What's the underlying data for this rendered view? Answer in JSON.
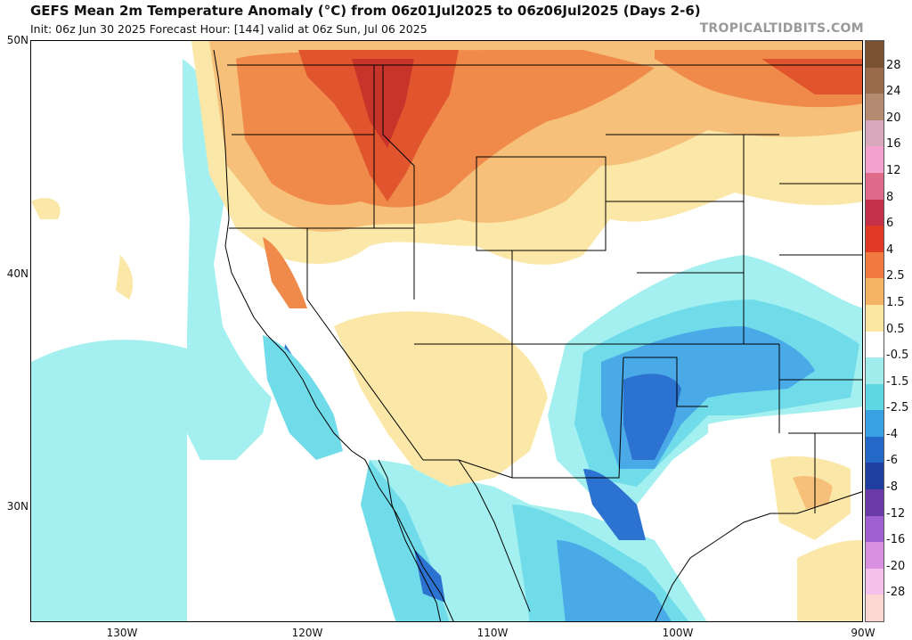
{
  "header": {
    "title": "GEFS Mean 2m Temperature Anomaly (°C) from 06z01Jul2025 to 06z06Jul2025 (Days 2-6)",
    "subtitle": "Init: 06z Jun 30 2025   Forecast Hour: [144]   valid at 06z Sun, Jul 06 2025",
    "brand": "TROPICALTIDBITS.COM"
  },
  "map": {
    "lat_labels": [
      {
        "label": "50N",
        "lat": 50
      },
      {
        "label": "40N",
        "lat": 40
      },
      {
        "label": "30N",
        "lat": 30
      }
    ],
    "lon_labels": [
      {
        "label": "130W",
        "lon": -130
      },
      {
        "label": "120W",
        "lon": -120
      },
      {
        "label": "110W",
        "lon": -110
      },
      {
        "label": "100W",
        "lon": -100
      },
      {
        "label": "90W",
        "lon": -90
      }
    ],
    "extent": {
      "lon_min": -135,
      "lon_max": -90,
      "lat_min": 25,
      "lat_max": 50
    }
  },
  "colorbar": {
    "labels": [
      "28",
      "24",
      "20",
      "16",
      "12",
      "8",
      "6",
      "4",
      "2.5",
      "1.5",
      "0.5",
      "-0.5",
      "-1.5",
      "-2.5",
      "-4",
      "-6",
      "-8",
      "-12",
      "-16",
      "-20",
      "-28"
    ],
    "colors": [
      "#7a5232",
      "#9a6a4a",
      "#b48a70",
      "#d8a8bc",
      "#f2a2cc",
      "#e06a8a",
      "#c4304a",
      "#e03a24",
      "#f07a40",
      "#f4b464",
      "#fbe7a0",
      "#ffffff",
      "#a0ecec",
      "#5ed6e4",
      "#3aa0e4",
      "#2468c8",
      "#1e3ea0",
      "#6a3aa8",
      "#a060d0",
      "#d890e0",
      "#f4c0ec",
      "#fcd6d0"
    ]
  },
  "palette": {
    "warm_light": "#fbe8a8",
    "warm_med": "#f6c07a",
    "warm_strong": "#f08a4a",
    "hot": "#e0542e",
    "hotter": "#c8342a",
    "cool_light": "#a4f0f0",
    "cool_med": "#70dcea",
    "cool_strong": "#4aaae8",
    "cold": "#2c72d0"
  }
}
